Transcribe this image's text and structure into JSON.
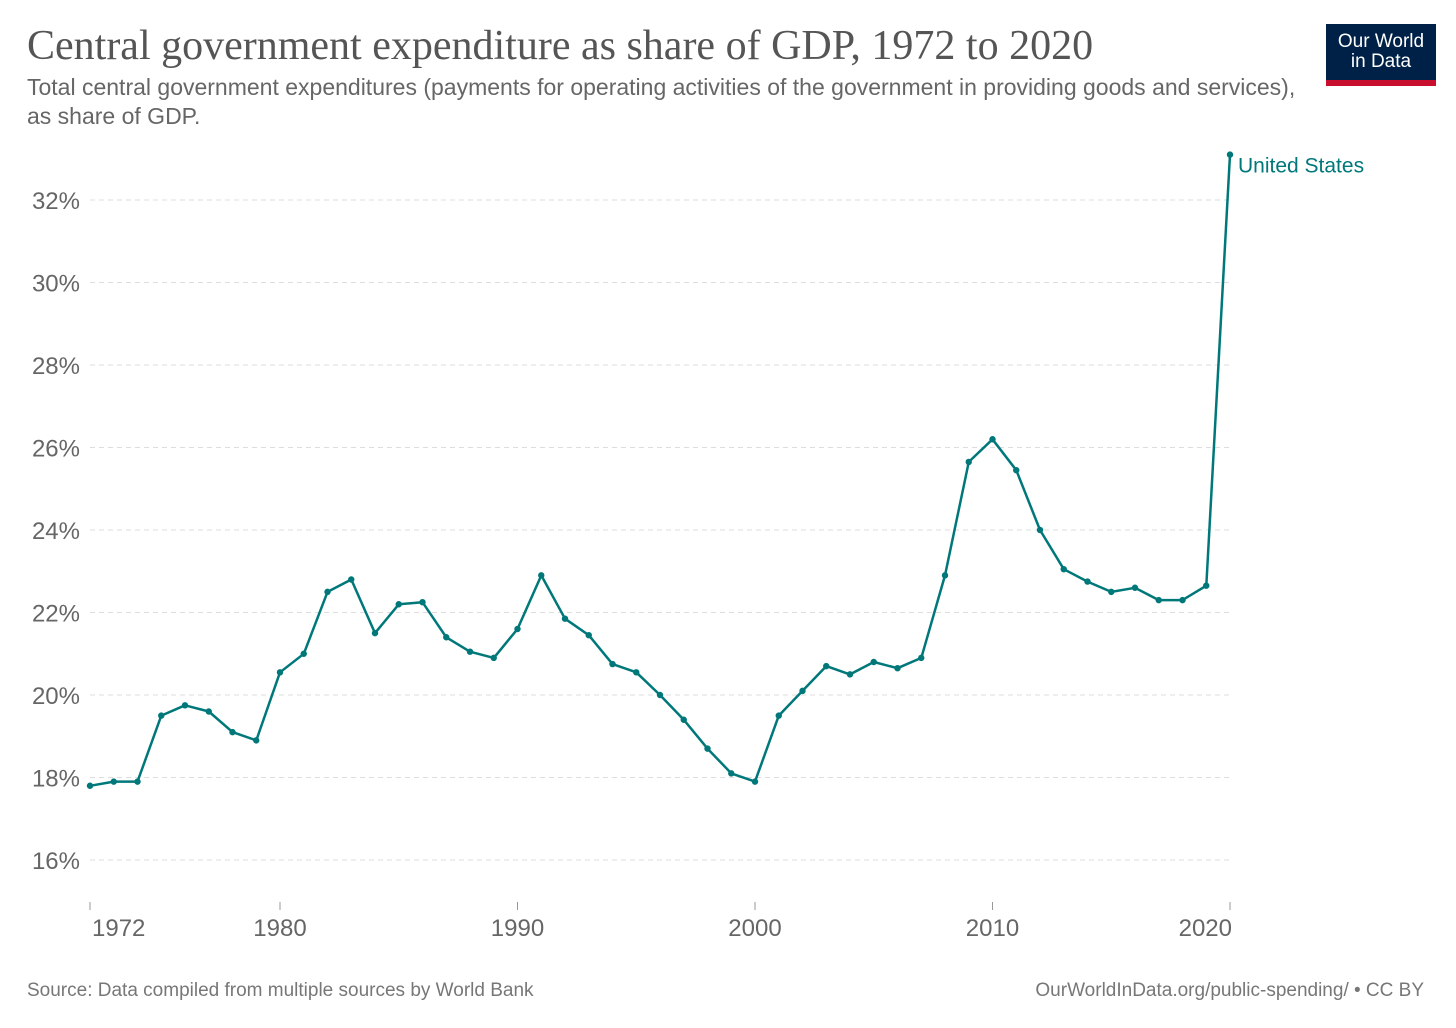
{
  "title": "Central government expenditure as share of GDP, 1972 to 2020",
  "subtitle": "Total central government expenditures (payments for operating activities of the government in providing goods and services), as share of GDP.",
  "logo": {
    "line1": "Our World",
    "line2": "in Data",
    "bg_color": "#002147",
    "bar_color": "#c8102e"
  },
  "source": "Source: Data compiled from multiple sources by World Bank",
  "footer_right": "OurWorldInData.org/public-spending/ • CC BY",
  "chart_data": {
    "type": "line",
    "title": "Central government expenditure as share of GDP, 1972 to 2020",
    "xlabel": "",
    "ylabel": "",
    "xlim": [
      1972,
      2020
    ],
    "ylim": [
      15,
      33
    ],
    "y_ticks": [
      16,
      18,
      20,
      22,
      24,
      26,
      28,
      30,
      32
    ],
    "y_tick_labels": [
      "16%",
      "18%",
      "20%",
      "22%",
      "24%",
      "26%",
      "28%",
      "30%",
      "32%"
    ],
    "x_ticks": [
      1972,
      1980,
      1990,
      2000,
      2010,
      2020
    ],
    "x_tick_labels": [
      "1972",
      "1980",
      "1990",
      "2000",
      "2010",
      "2020"
    ],
    "grid": true,
    "series": [
      {
        "name": "United States",
        "color": "#00787a",
        "x": [
          1972,
          1973,
          1974,
          1975,
          1976,
          1977,
          1978,
          1979,
          1980,
          1981,
          1982,
          1983,
          1984,
          1985,
          1986,
          1987,
          1988,
          1989,
          1990,
          1991,
          1992,
          1993,
          1994,
          1995,
          1996,
          1997,
          1998,
          1999,
          2000,
          2001,
          2002,
          2003,
          2004,
          2005,
          2006,
          2007,
          2008,
          2009,
          2010,
          2011,
          2012,
          2013,
          2014,
          2015,
          2016,
          2017,
          2018,
          2019,
          2020
        ],
        "values": [
          17.8,
          17.9,
          17.9,
          19.5,
          19.75,
          19.6,
          19.1,
          18.9,
          20.55,
          21.0,
          22.5,
          22.8,
          21.5,
          22.2,
          22.25,
          21.4,
          21.05,
          20.9,
          21.6,
          22.9,
          21.85,
          21.45,
          20.75,
          20.55,
          20.0,
          19.4,
          18.7,
          18.1,
          17.9,
          19.5,
          20.1,
          20.7,
          20.5,
          20.8,
          20.65,
          20.9,
          22.9,
          25.65,
          26.2,
          25.45,
          24.0,
          23.05,
          22.75,
          22.5,
          22.6,
          22.3,
          22.3,
          22.65,
          33.1
        ]
      }
    ]
  }
}
